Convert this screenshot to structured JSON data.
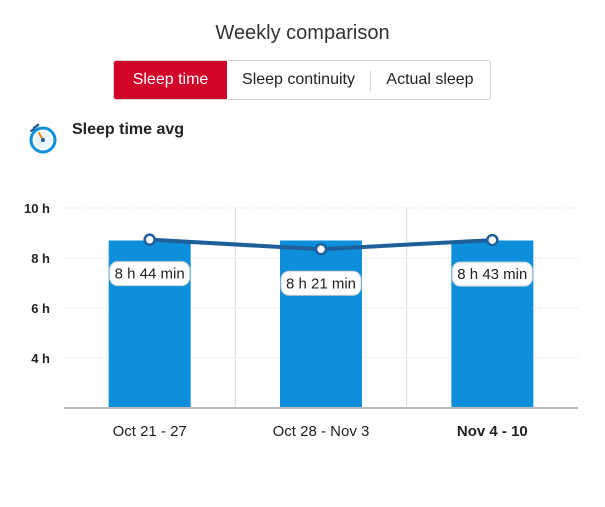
{
  "title": "Weekly comparison",
  "tabs": [
    {
      "label": "Sleep time",
      "active": true
    },
    {
      "label": "Sleep continuity",
      "active": false
    },
    {
      "label": "Actual sleep",
      "active": false
    }
  ],
  "section": {
    "label": "Sleep time avg",
    "icon": "sleep-timer-icon"
  },
  "colors": {
    "accent": "#d10429",
    "bar": "#0d8fdb",
    "line": "#1f5f9a"
  },
  "chart_data": {
    "type": "bar",
    "title": "",
    "xlabel": "",
    "ylabel": "",
    "ylim": [
      2,
      10
    ],
    "yticks": [
      4,
      6,
      8,
      10
    ],
    "ytick_labels": [
      "4 h",
      "6 h",
      "8 h",
      "10 h"
    ],
    "categories": [
      "Oct 21 - 27",
      "Oct 28 - Nov 3",
      "Nov 4 - 10"
    ],
    "bold_category": "Nov 4 - 10",
    "bar_values": [
      8.7,
      8.7,
      8.7
    ],
    "series": [
      {
        "type": "line",
        "values": [
          8.733,
          8.35,
          8.717
        ],
        "labels": [
          "8 h 44 min",
          "8 h 21 min",
          "8 h 43 min"
        ]
      }
    ],
    "grid": true
  }
}
